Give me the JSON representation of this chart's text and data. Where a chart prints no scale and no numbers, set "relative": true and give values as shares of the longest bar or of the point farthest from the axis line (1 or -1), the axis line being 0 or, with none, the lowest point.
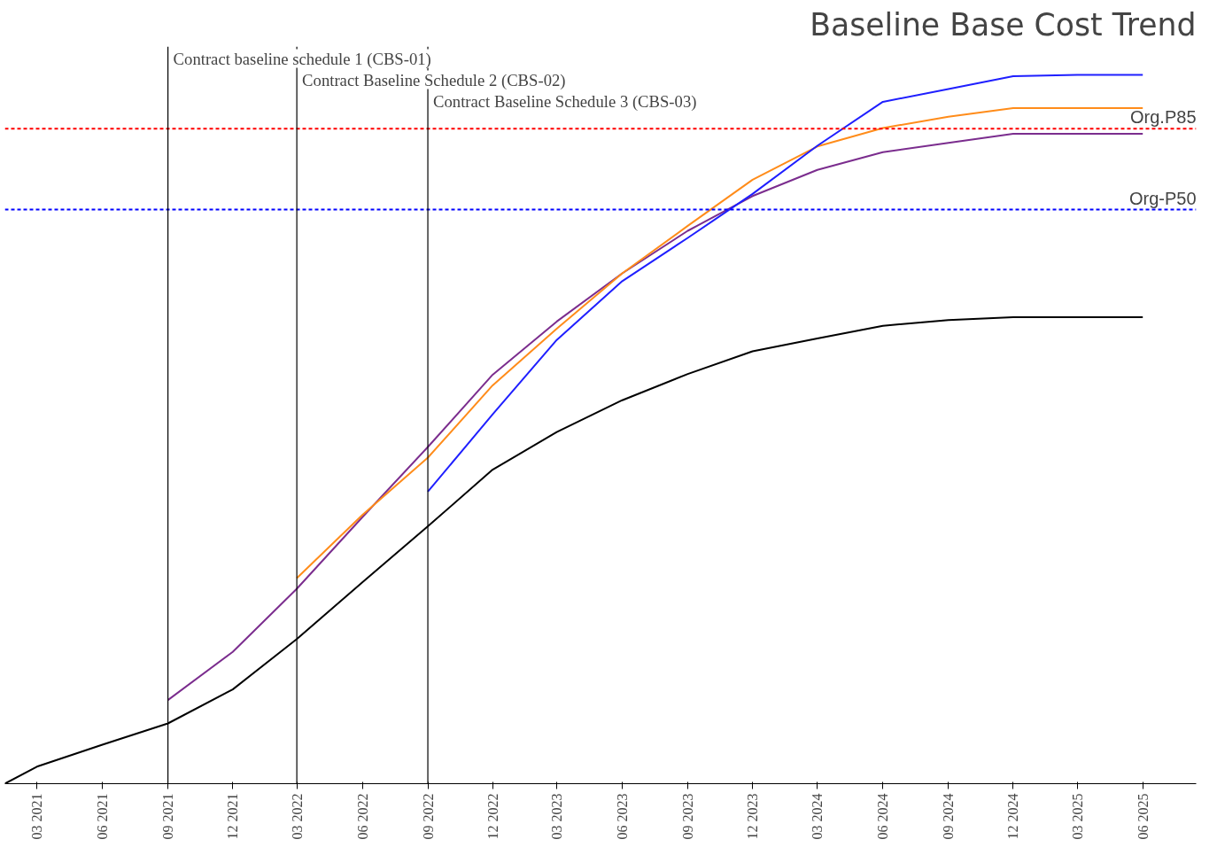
{
  "chart_data": {
    "type": "line",
    "title": "Baseline Base Cost Trend",
    "relative": true,
    "grid": false,
    "tick_labels": "x",
    "line_style": "solid",
    "marker": "none",
    "xlim": [
      "2021-01-15",
      "2025-08-15"
    ],
    "xticks": [
      {
        "value": "2021-03",
        "label": "03 2021"
      },
      {
        "value": "2021-06",
        "label": "06 2021"
      },
      {
        "value": "2021-09",
        "label": "09 2021"
      },
      {
        "value": "2021-12",
        "label": "12 2021"
      },
      {
        "value": "2022-03",
        "label": "03 2022"
      },
      {
        "value": "2022-06",
        "label": "06 2022"
      },
      {
        "value": "2022-09",
        "label": "09 2022"
      },
      {
        "value": "2022-12",
        "label": "12 2022"
      },
      {
        "value": "2023-03",
        "label": "03 2023"
      },
      {
        "value": "2023-06",
        "label": "06 2023"
      },
      {
        "value": "2023-09",
        "label": "09 2023"
      },
      {
        "value": "2023-12",
        "label": "12 2023"
      },
      {
        "value": "2024-03",
        "label": "03 2024"
      },
      {
        "value": "2024-06",
        "label": "06 2024"
      },
      {
        "value": "2024-09",
        "label": "09 2024"
      },
      {
        "value": "2024-12",
        "label": "12 2024"
      },
      {
        "value": "2025-03",
        "label": "03 2025"
      },
      {
        "value": "2025-06",
        "label": "06 2025"
      }
    ],
    "series": [
      {
        "color": "#000000",
        "x": [
          "2021-01-15",
          "2021-03",
          "2021-06",
          "2021-09",
          "2021-12",
          "2022-03",
          "2022-06",
          "2022-09",
          "2022-12",
          "2023-03",
          "2023-06",
          "2023-09",
          "2023-12",
          "2024-03",
          "2024-06",
          "2024-09",
          "2024-12",
          "2025-03",
          "2025-06"
        ],
        "values": [
          0,
          0.024,
          0.055,
          0.085,
          0.133,
          0.204,
          0.284,
          0.363,
          0.443,
          0.496,
          0.541,
          0.578,
          0.61,
          0.628,
          0.646,
          0.654,
          0.658,
          0.658,
          0.658
        ]
      },
      {
        "color": "#7b2d8e",
        "x": [
          "2021-09",
          "2021-12",
          "2022-03",
          "2022-06",
          "2022-09",
          "2022-12",
          "2023-03",
          "2023-06",
          "2023-09",
          "2023-12",
          "2024-03",
          "2024-06",
          "2024-09",
          "2024-12",
          "2025-03",
          "2025-06"
        ],
        "values": [
          0.118,
          0.186,
          0.275,
          0.376,
          0.475,
          0.577,
          0.652,
          0.72,
          0.78,
          0.829,
          0.866,
          0.891,
          0.904,
          0.917,
          0.917,
          0.917
        ]
      },
      {
        "color": "#ff8c1a",
        "x": [
          "2022-03",
          "2022-06",
          "2022-09",
          "2022-12",
          "2023-03",
          "2023-06",
          "2023-09",
          "2023-12",
          "2024-03",
          "2024-06",
          "2024-09",
          "2024-12",
          "2025-03",
          "2025-06"
        ],
        "values": [
          0.29,
          0.379,
          0.46,
          0.562,
          0.642,
          0.72,
          0.787,
          0.852,
          0.899,
          0.925,
          0.941,
          0.953,
          0.953,
          0.953
        ]
      },
      {
        "color": "#1f1fff",
        "x": [
          "2022-09",
          "2022-12",
          "2023-03",
          "2023-06",
          "2023-09",
          "2023-12",
          "2024-03",
          "2024-06",
          "2024-09",
          "2024-12",
          "2025-03",
          "2025-06"
        ],
        "values": [
          0.412,
          0.521,
          0.626,
          0.709,
          0.77,
          0.832,
          0.9,
          0.962,
          0.98,
          0.998,
          1,
          1
        ]
      }
    ],
    "ref_lines": [
      {
        "axis": "y",
        "value": 0.924,
        "label": "Org.P85",
        "color": "#ff0000",
        "line_style": "dashed"
      },
      {
        "axis": "y",
        "value": 0.81,
        "label": "Org-P50",
        "color": "#0000ff",
        "line_style": "dashed"
      },
      {
        "axis": "x",
        "value": "2021-09",
        "label": "Contract baseline schedule 1 (CBS-01)",
        "color": "#000000",
        "line_style": "solid"
      },
      {
        "axis": "x",
        "value": "2022-03",
        "label": "Contract Baseline Schedule 2 (CBS-02)",
        "color": "#000000",
        "line_style": "solid"
      },
      {
        "axis": "x",
        "value": "2022-09",
        "label": "Contract Baseline Schedule 3 (CBS-03)",
        "color": "#000000",
        "line_style": "solid"
      }
    ]
  }
}
